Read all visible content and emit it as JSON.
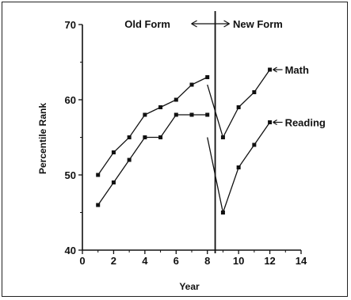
{
  "chart_data": {
    "type": "line",
    "title": "",
    "xlabel": "Year",
    "ylabel": "Percentile Rank",
    "xlim": [
      0,
      14
    ],
    "ylim": [
      40,
      70
    ],
    "x_ticks": [
      0,
      2,
      4,
      6,
      8,
      10,
      12,
      14
    ],
    "y_ticks": [
      40,
      50,
      60,
      70
    ],
    "x_tick_labels": [
      "0",
      "2",
      "4",
      "6",
      "8",
      "10",
      "12",
      "14"
    ],
    "y_tick_labels": [
      "40",
      "50",
      "60",
      "70"
    ],
    "grid": false,
    "form_change_x": 8.5,
    "annotations": {
      "old_form": "Old Form",
      "new_form": "New Form"
    },
    "series": [
      {
        "name": "Math",
        "label": "Math",
        "segments": [
          {
            "x": [
              1,
              2,
              3,
              4,
              5,
              6,
              7,
              8
            ],
            "y": [
              50,
              53,
              55,
              58,
              59,
              60,
              62,
              63
            ]
          },
          {
            "x": [
              8,
              9,
              10,
              11,
              12
            ],
            "y": [
              62,
              55,
              59,
              61,
              64
            ]
          }
        ]
      },
      {
        "name": "Reading",
        "label": "Reading",
        "segments": [
          {
            "x": [
              1,
              2,
              3,
              4,
              5,
              6,
              7,
              8
            ],
            "y": [
              46,
              49,
              52,
              55,
              55,
              58,
              58,
              58
            ]
          },
          {
            "x": [
              8,
              9,
              10,
              11,
              12
            ],
            "y": [
              55,
              45,
              51,
              54,
              57
            ]
          }
        ]
      }
    ]
  }
}
